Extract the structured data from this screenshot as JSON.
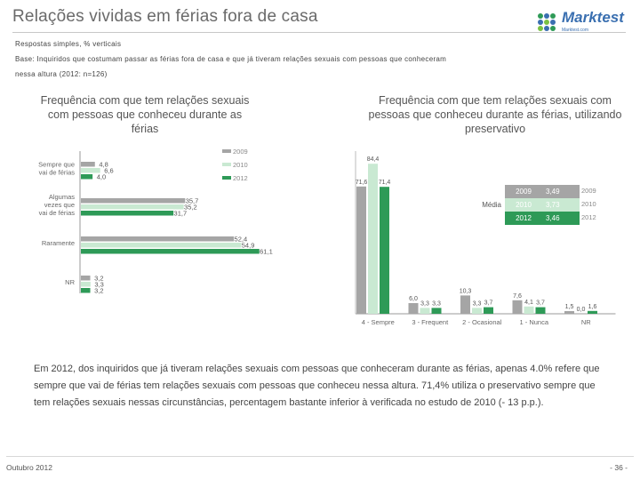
{
  "title": "Relações vividas em férias fora de casa",
  "logo": {
    "brand": "Marktest",
    "tagline": "Marktest.com"
  },
  "meta": {
    "line1": "Respostas simples, % verticais",
    "line2": "Base: Inquiridos que costumam passar as férias fora de casa e que já tiveram relações sexuais com pessoas que conheceram",
    "line3": "nessa altura (2012: n=126)"
  },
  "colors": {
    "y2009": "#a5a5a5",
    "y2010": "#c9e9d2",
    "y2012": "#2e9a57"
  },
  "chart_data": [
    {
      "type": "bar",
      "orientation": "horizontal",
      "title": "Frequência com que tem relações sexuais com pessoas que conheceu durante as férias",
      "categories": [
        "Sempre que vai de férias",
        "Algumas vezes que vai de férias",
        "Raramente",
        "NR"
      ],
      "series": [
        {
          "name": "2009",
          "values": [
            4.8,
            35.7,
            52.4,
            3.2
          ]
        },
        {
          "name": "2010",
          "values": [
            6.6,
            35.2,
            54.9,
            3.3
          ]
        },
        {
          "name": "2012",
          "values": [
            4.0,
            31.7,
            61.1,
            3.2
          ]
        }
      ],
      "value_labels": [
        [
          "4,8",
          "35,7",
          "52,4",
          "3,2"
        ],
        [
          "6,6",
          "35,2",
          "54,9",
          "3,3"
        ],
        [
          "4,0",
          "31,7",
          "61,1",
          "3,2"
        ]
      ],
      "legend": [
        "2009",
        "2010",
        "2012"
      ],
      "xlim": [
        0,
        70
      ]
    },
    {
      "type": "bar",
      "orientation": "vertical",
      "title": "Frequência com que tem relações sexuais com pessoas que conheceu durante as férias, utilizando preservativo",
      "categories": [
        "4 - Sempre",
        "3 - Frequent",
        "2 - Ocasional",
        "1 - Nunca",
        "NR"
      ],
      "series": [
        {
          "name": "2009",
          "values": [
            71.6,
            6.0,
            10.3,
            7.6,
            1.5
          ]
        },
        {
          "name": "2010",
          "values": [
            84.4,
            3.3,
            3.3,
            4.1,
            0.0
          ]
        },
        {
          "name": "2012",
          "values": [
            71.4,
            3.3,
            3.7,
            3.7,
            1.6
          ]
        }
      ],
      "value_labels": [
        [
          "71,6",
          "6,0",
          "10,3",
          "7,6",
          "1,5"
        ],
        [
          "84,4",
          "3,3",
          "3,3",
          "4,1",
          "0,0"
        ],
        [
          "71,4",
          "3,3",
          "3,7",
          "3,7",
          "1,6"
        ]
      ],
      "legend": [
        "2009",
        "2010",
        "2012"
      ],
      "ylim": [
        0,
        90
      ],
      "table": {
        "label": "Média",
        "rows": [
          {
            "year": "2009",
            "value": "3,49"
          },
          {
            "year": "2010",
            "value": "3,73"
          },
          {
            "year": "2012",
            "value": "3,46"
          }
        ]
      }
    }
  ],
  "caption": "Em 2012, dos inquiridos que já tiveram relações sexuais com pessoas que conheceram durante as férias, apenas 4.0% refere que sempre que vai de férias tem relações sexuais com pessoas que conheceu nessa altura. 71,4% utiliza o preservativo sempre que tem relações sexuais nessas circunstâncias, percentagem bastante inferior à verificada no estudo de 2010 (- 13 p.p.).",
  "footer": {
    "date": "Outubro 2012",
    "page": "- 36 -"
  }
}
